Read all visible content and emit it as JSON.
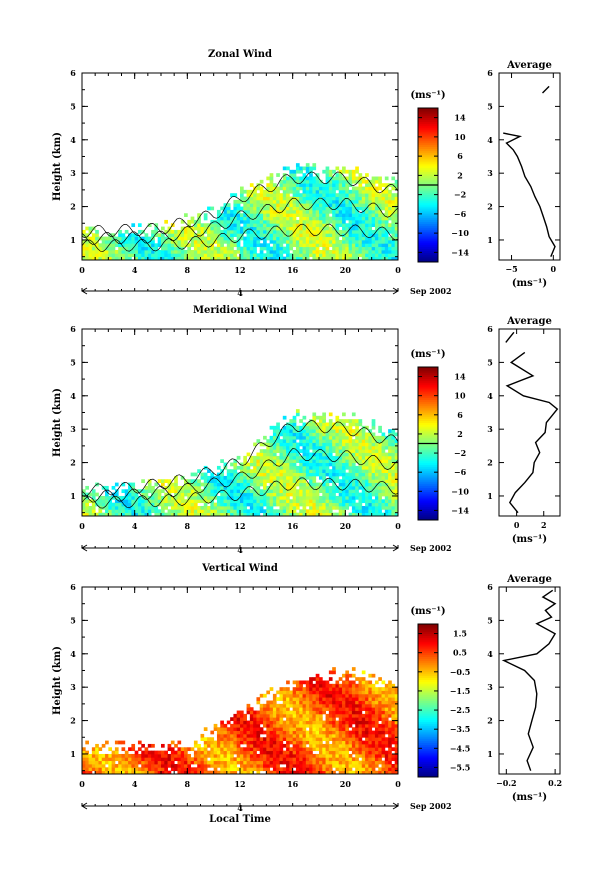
{
  "chart_data": [
    {
      "type": "heatmap",
      "title": "Zonal Wind",
      "xlabel": "",
      "ylabel": "Height (km)",
      "x_ticks": [
        "0",
        "4",
        "8",
        "12",
        "16",
        "20",
        "0"
      ],
      "y_ticks": [
        "1",
        "2",
        "3",
        "4",
        "5",
        "6"
      ],
      "xlim": [
        0,
        24
      ],
      "ylim": [
        0.4,
        6.0
      ],
      "date_label": "4",
      "date_suffix": "Sep 2002",
      "colorbar": {
        "label": "(ms⁻¹)",
        "min": -16,
        "max": 16,
        "tick_values": [
          14,
          10,
          6,
          2,
          -2,
          -6,
          -10,
          -14
        ],
        "tick_labels": [
          "14",
          "10",
          "6",
          "2",
          "−2",
          "−6",
          "−10",
          "−14"
        ],
        "zero_line": 0
      },
      "field": {
        "description": "Radar wind profiler zonal wind; mostly -4 to +4 m/s, coverage up to ~1.4 km before 12 LT and up to ~3.4 km after 12 LT, isolated patch near 3.9 km at ~8 LT",
        "value_range": [
          -6,
          5
        ],
        "coverage_top_km": [
          [
            0,
            1.4
          ],
          [
            6,
            1.5
          ],
          [
            10,
            2.0
          ],
          [
            12,
            2.6
          ],
          [
            16,
            3.3
          ],
          [
            20,
            3.3
          ],
          [
            24,
            2.8
          ]
        ],
        "contour_level": 0
      },
      "profile": {
        "title": "Average",
        "xlabel": "(ms⁻¹)",
        "x_ticks": [
          "−5",
          "0"
        ],
        "xlim": [
          -6.5,
          0.8
        ],
        "heights": [
          0.5,
          0.8,
          1.1,
          1.4,
          1.7,
          2.0,
          2.3,
          2.6,
          2.9,
          3.2,
          3.5,
          3.7,
          3.9,
          4.1,
          4.2
        ],
        "values": [
          -0.3,
          0.2,
          -0.5,
          -0.8,
          -1.2,
          -1.6,
          -2.2,
          -2.7,
          -3.4,
          -3.8,
          -4.3,
          -4.8,
          -5.6,
          -4.0,
          -6.0
        ],
        "upper_segment": {
          "heights": [
            5.4,
            5.6
          ],
          "values": [
            -1.3,
            -0.5
          ]
        }
      }
    },
    {
      "type": "heatmap",
      "title": "Meridional Wind",
      "xlabel": "",
      "ylabel": "Height (km)",
      "x_ticks": [
        "0",
        "4",
        "8",
        "12",
        "16",
        "20",
        "0"
      ],
      "y_ticks": [
        "1",
        "2",
        "3",
        "4",
        "5",
        "6"
      ],
      "xlim": [
        0,
        24
      ],
      "ylim": [
        0.4,
        6.0
      ],
      "date_label": "4",
      "date_suffix": "Sep 2002",
      "colorbar": {
        "label": "(ms⁻¹)",
        "min": -16,
        "max": 16,
        "tick_values": [
          14,
          10,
          6,
          2,
          -2,
          -6,
          -10,
          -14
        ],
        "tick_labels": [
          "14",
          "10",
          "6",
          "2",
          "−2",
          "−6",
          "−10",
          "−14"
        ],
        "zero_line": 0
      },
      "field": {
        "description": "Radar wind profiler meridional wind; mostly -5 to +5 m/s, coverage up to ~1.6 km before 12 LT and up to ~3.6 km after 12 LT",
        "value_range": [
          -6,
          5
        ],
        "coverage_top_km": [
          [
            0,
            1.3
          ],
          [
            4,
            1.4
          ],
          [
            8,
            1.7
          ],
          [
            12,
            2.3
          ],
          [
            16,
            3.6
          ],
          [
            20,
            3.5
          ],
          [
            24,
            3.0
          ]
        ],
        "contour_level": 0
      },
      "profile": {
        "title": "Average",
        "xlabel": "(ms⁻¹)",
        "x_ticks": [
          "0",
          "2"
        ],
        "xlim": [
          -1.3,
          3.2
        ],
        "heights": [
          0.5,
          0.8,
          1.1,
          1.4,
          1.7,
          2.0,
          2.3,
          2.6,
          2.9,
          3.2,
          3.4,
          3.6,
          3.8,
          4.0,
          4.3,
          4.6,
          5.0,
          5.3
        ],
        "values": [
          0.1,
          -0.5,
          -0.1,
          0.6,
          1.2,
          1.3,
          1.7,
          1.4,
          2.1,
          2.2,
          2.6,
          3.0,
          2.4,
          0.5,
          -0.7,
          1.2,
          -0.4,
          0.6
        ],
        "upper_segment": {
          "heights": [
            5.6,
            5.9
          ],
          "values": [
            -0.8,
            -0.2
          ]
        }
      }
    },
    {
      "type": "heatmap",
      "title": "Vertical Wind",
      "xlabel": "Local Time",
      "ylabel": "Height (km)",
      "x_ticks": [
        "0",
        "4",
        "8",
        "12",
        "16",
        "20",
        "0"
      ],
      "y_ticks": [
        "1",
        "2",
        "3",
        "4",
        "5",
        "6"
      ],
      "xlim": [
        0,
        24
      ],
      "ylim": [
        0.4,
        6.0
      ],
      "date_label": "4",
      "date_suffix": "Sep 2002",
      "colorbar": {
        "label": "(ms⁻¹)",
        "min": -6.0,
        "max": 2.0,
        "tick_values": [
          1.5,
          0.5,
          -0.5,
          -1.5,
          -2.5,
          -3.5,
          -4.5,
          -5.5
        ],
        "tick_labels": [
          "1.5",
          "0.5",
          "−0.5",
          "−1.5",
          "−2.5",
          "−3.5",
          "−4.5",
          "−5.5"
        ]
      },
      "field": {
        "description": "Radar wind profiler vertical wind; mostly -0.5 to +0.5 m/s (yellow/orange), coverage up to ~1.4 km before 12 LT and up to ~3.5 km after 12 LT",
        "value_range": [
          -1.0,
          1.5
        ],
        "coverage_top_km": [
          [
            0,
            1.4
          ],
          [
            8,
            1.4
          ],
          [
            12,
            2.4
          ],
          [
            16,
            3.3
          ],
          [
            20,
            3.6
          ],
          [
            24,
            3.2
          ]
        ]
      },
      "profile": {
        "title": "Average",
        "xlabel": "(ms⁻¹)",
        "x_ticks": [
          "−0.2",
          "0.2"
        ],
        "xlim": [
          -0.26,
          0.24
        ],
        "heights": [
          0.5,
          0.8,
          1.2,
          1.6,
          2.0,
          2.4,
          2.8,
          3.2,
          3.5,
          3.8,
          4.0,
          4.3,
          4.6,
          4.9,
          5.1,
          5.3,
          5.5,
          5.7,
          5.9
        ],
        "values": [
          0.0,
          -0.03,
          0.02,
          -0.02,
          0.01,
          0.04,
          0.05,
          0.03,
          -0.05,
          -0.22,
          0.05,
          0.15,
          0.2,
          0.05,
          0.17,
          0.12,
          0.2,
          0.1,
          0.18
        ]
      }
    }
  ]
}
